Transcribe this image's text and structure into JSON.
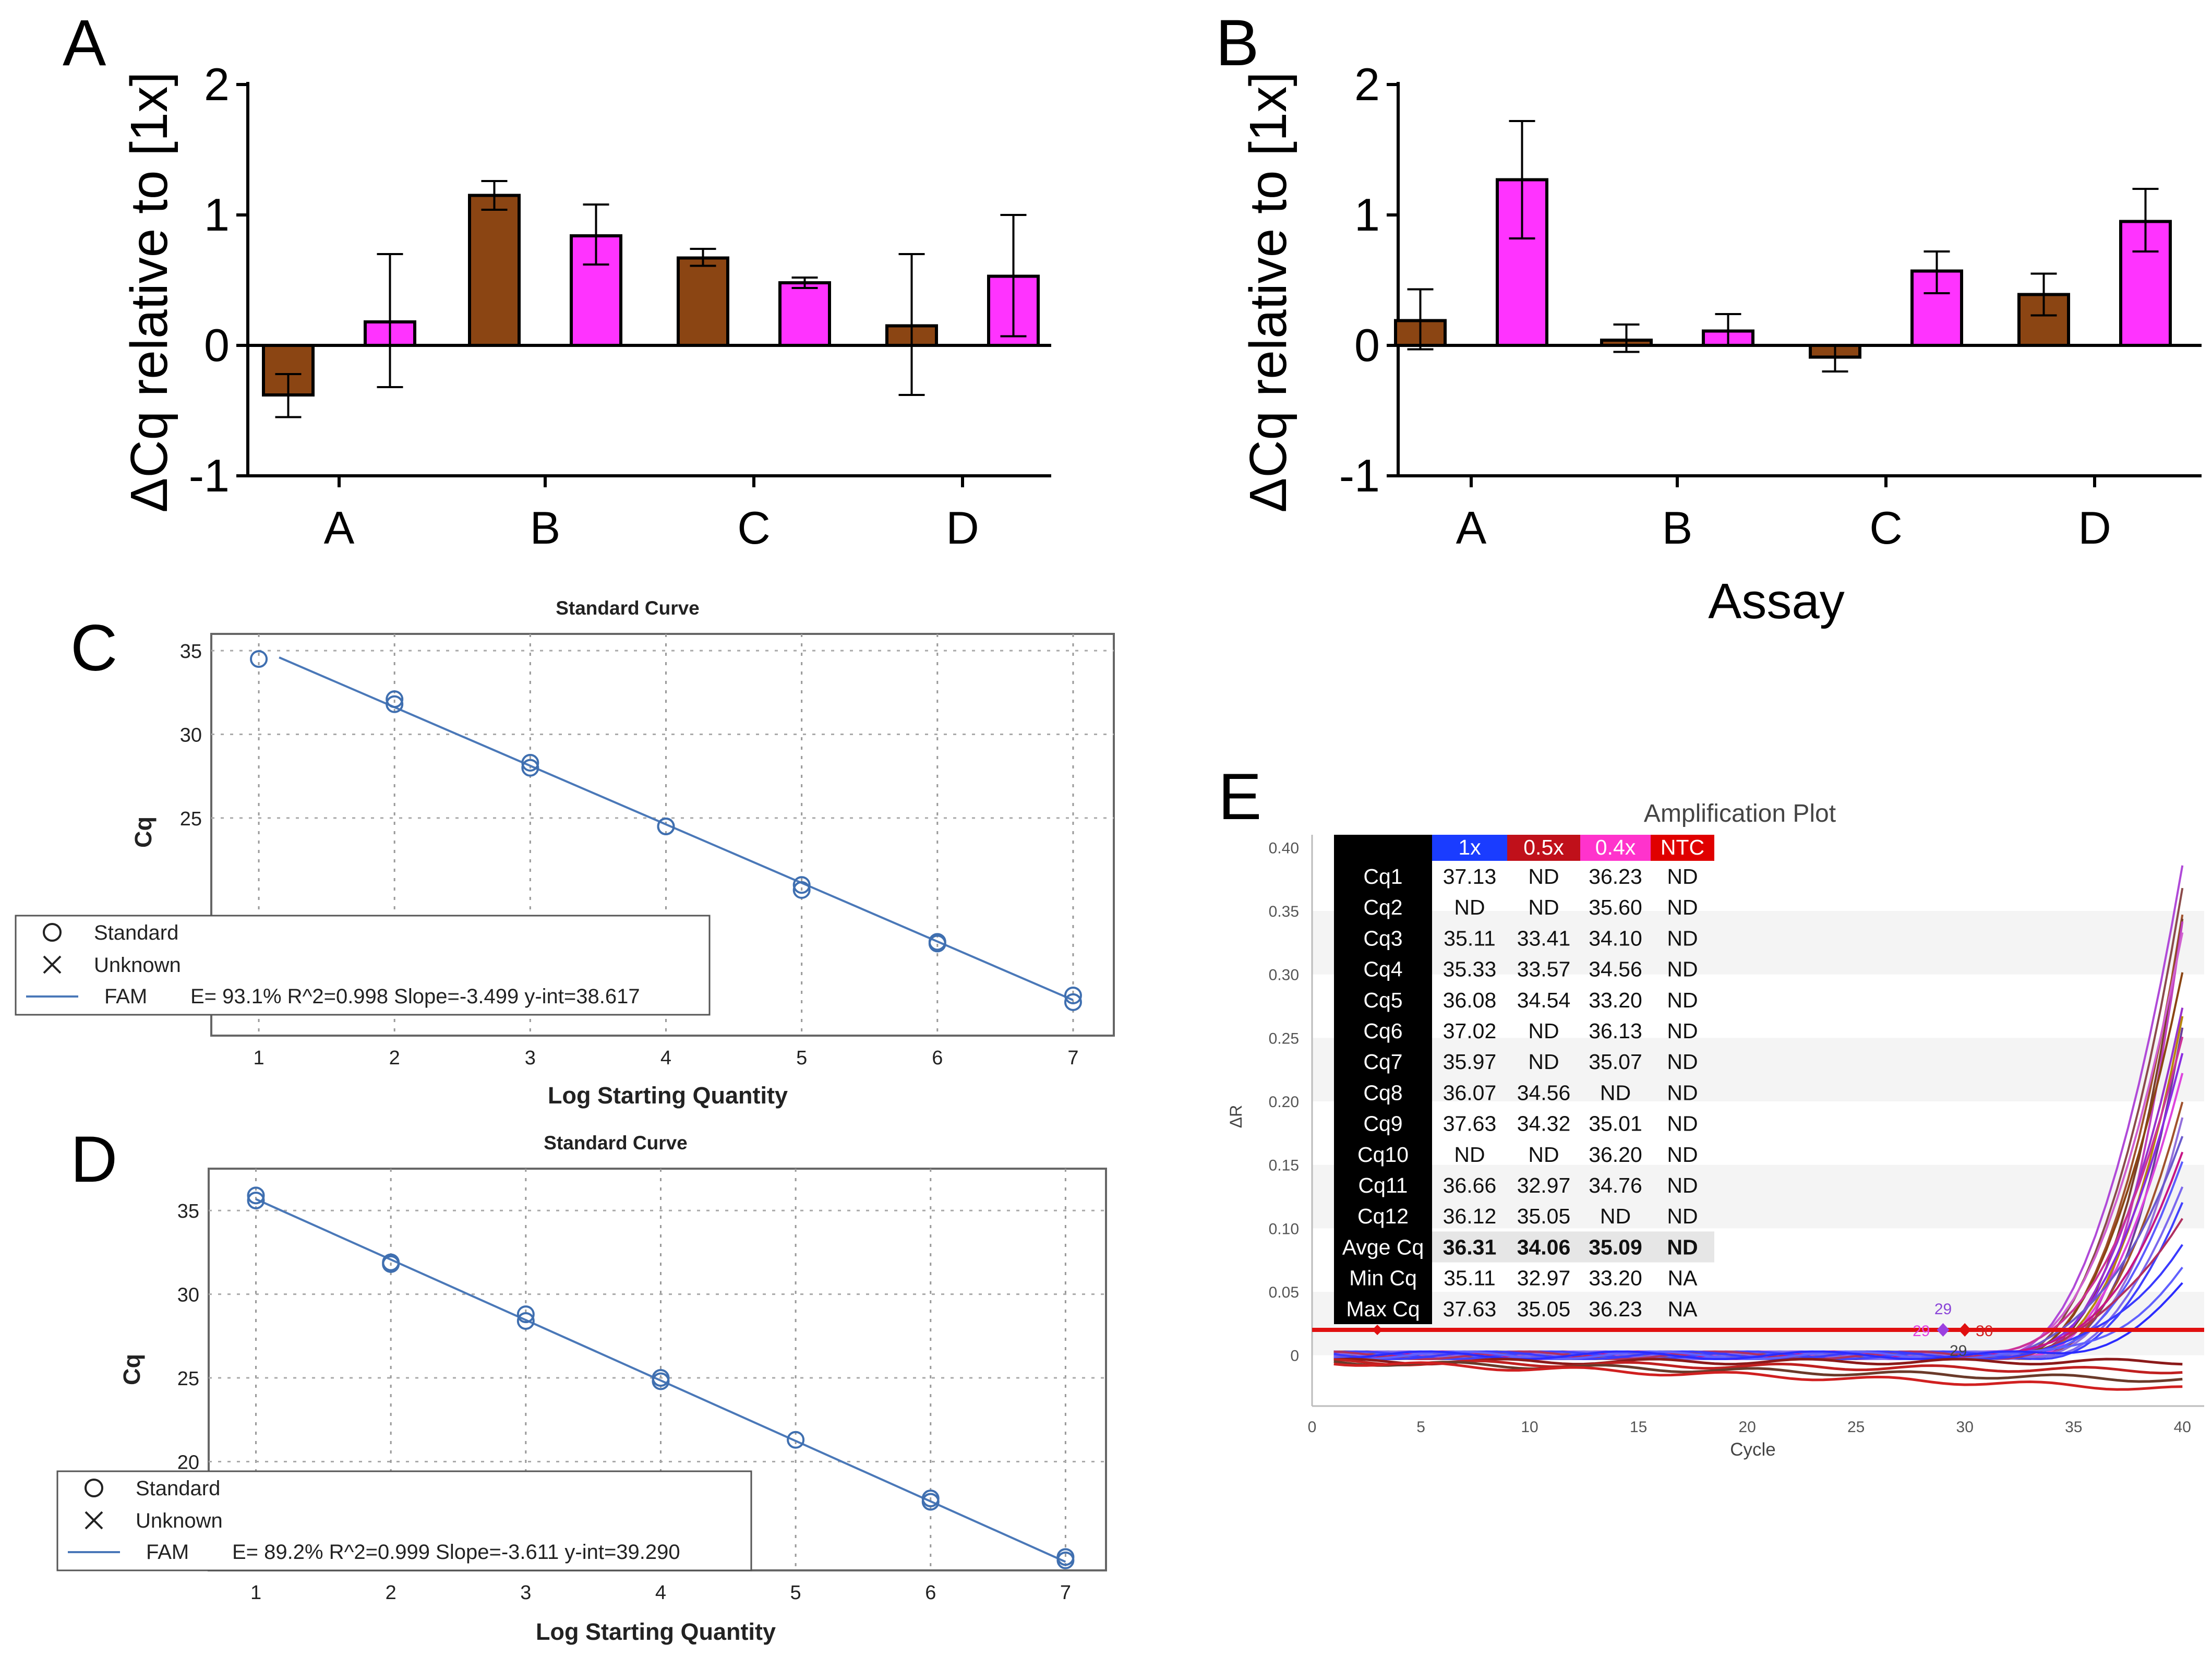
{
  "chart_data": [
    {
      "panel": "A",
      "type": "bar",
      "title": "",
      "xlabel": "",
      "ylabel": "ΔCq relative to [1x]",
      "categories": [
        "A",
        "B",
        "C",
        "D"
      ],
      "ylim": [
        -1,
        2
      ],
      "yticks": [
        -1,
        0,
        1,
        2
      ],
      "series": [
        {
          "name": "brown",
          "color": "#8B4513",
          "values": [
            -0.38,
            1.15,
            0.67,
            0.15
          ],
          "err_low": [
            -0.55,
            1.04,
            0.61,
            -0.38
          ],
          "err_high": [
            -0.22,
            1.26,
            0.74,
            0.7
          ]
        },
        {
          "name": "magenta",
          "color": "#FF33FF",
          "values": [
            0.18,
            0.84,
            0.48,
            0.53
          ],
          "err_low": [
            -0.32,
            0.62,
            0.44,
            0.07
          ],
          "err_high": [
            0.7,
            1.08,
            0.52,
            1.0
          ]
        }
      ]
    },
    {
      "panel": "B",
      "type": "bar",
      "title": "",
      "xlabel": "Assay",
      "ylabel": "ΔCq relative to [1x]",
      "categories": [
        "A",
        "B",
        "C",
        "D"
      ],
      "ylim": [
        -1,
        2
      ],
      "yticks": [
        -1,
        0,
        1,
        2
      ],
      "series": [
        {
          "name": "brown",
          "color": "#8B4513",
          "values": [
            0.19,
            0.04,
            -0.09,
            0.39
          ],
          "err_low": [
            -0.03,
            -0.05,
            -0.2,
            0.23
          ],
          "err_high": [
            0.43,
            0.16,
            0.0,
            0.55
          ]
        },
        {
          "name": "magenta",
          "color": "#FF33FF",
          "values": [
            1.27,
            0.11,
            0.57,
            0.95
          ],
          "err_low": [
            0.82,
            0.0,
            0.4,
            0.72
          ],
          "err_high": [
            1.72,
            0.24,
            0.72,
            1.2
          ]
        }
      ]
    },
    {
      "panel": "C",
      "type": "scatter",
      "title": "Standard Curve",
      "xlabel": "Log Starting Quantity",
      "ylabel": "Cq",
      "xlim": [
        0.65,
        7.3
      ],
      "ylim": [
        12,
        36
      ],
      "xticks": [
        1,
        2,
        3,
        4,
        5,
        6,
        7
      ],
      "yticks": [
        25,
        30,
        35
      ],
      "points": [
        [
          1,
          34.5
        ],
        [
          2,
          31.8
        ],
        [
          2,
          32.1
        ],
        [
          3,
          28.0
        ],
        [
          3,
          28.3
        ],
        [
          4,
          24.5
        ],
        [
          4,
          24.5
        ],
        [
          5,
          20.7
        ],
        [
          5,
          21.0
        ],
        [
          6,
          17.5
        ],
        [
          6,
          17.6
        ],
        [
          7,
          14.0
        ],
        [
          7,
          14.4
        ]
      ],
      "fit": {
        "slope": -3.499,
        "intercept": 38.617,
        "x_range": [
          1.15,
          7.0
        ]
      },
      "legend": {
        "standard": "Standard",
        "unknown": "Unknown",
        "fam": "FAM",
        "stats": "E= 93.1% R^2=0.998 Slope=-3.499 y-int=38.617"
      }
    },
    {
      "panel": "D",
      "type": "scatter",
      "title": "Standard Curve",
      "xlabel": "Log Starting Quantity",
      "ylabel": "Cq",
      "xlim": [
        0.65,
        7.3
      ],
      "ylim": [
        13.5,
        37.5
      ],
      "xticks": [
        1,
        2,
        3,
        4,
        5,
        6,
        7
      ],
      "yticks": [
        20,
        25,
        30,
        35
      ],
      "points": [
        [
          1,
          35.6
        ],
        [
          1,
          35.9
        ],
        [
          2,
          31.8
        ],
        [
          2,
          31.9
        ],
        [
          3,
          28.4
        ],
        [
          3,
          28.8
        ],
        [
          4,
          24.8
        ],
        [
          4,
          25.0
        ],
        [
          5,
          21.3
        ],
        [
          6,
          17.6
        ],
        [
          6,
          17.8
        ],
        [
          7,
          14.1
        ],
        [
          7,
          14.3
        ]
      ],
      "fit": {
        "slope": -3.611,
        "intercept": 39.29,
        "x_range": [
          1.0,
          7.0
        ]
      },
      "legend": {
        "standard": "Standard",
        "unknown": "Unknown",
        "fam": "FAM",
        "stats": "E= 89.2% R^2=0.999 Slope=-3.611 y-int=39.290"
      }
    },
    {
      "panel": "E",
      "type": "line",
      "title": "Amplification Plot",
      "xlabel": "Cycle",
      "ylabel": "ΔR",
      "xlim": [
        0,
        41
      ],
      "ylim": [
        -0.04,
        0.41
      ],
      "xticks": [
        0,
        5,
        10,
        15,
        20,
        25,
        30,
        35,
        40
      ],
      "yticks": [
        0,
        0.05,
        0.1,
        0.15,
        0.2,
        0.25,
        0.3,
        0.35,
        0.4
      ],
      "threshold": 0.02,
      "markers": [
        "29",
        "29",
        "30",
        "29"
      ],
      "table": {
        "headers": [
          "1x",
          "0.5x",
          "0.4x",
          "NTC"
        ],
        "header_colors": [
          "#1a3cff",
          "#c0101a",
          "#ff33cc",
          "#e00000"
        ],
        "rows": [
          [
            "Cq1",
            "37.13",
            "ND",
            "36.23",
            "ND"
          ],
          [
            "Cq2",
            "ND",
            "ND",
            "35.60",
            "ND"
          ],
          [
            "Cq3",
            "35.11",
            "33.41",
            "34.10",
            "ND"
          ],
          [
            "Cq4",
            "35.33",
            "33.57",
            "34.56",
            "ND"
          ],
          [
            "Cq5",
            "36.08",
            "34.54",
            "33.20",
            "ND"
          ],
          [
            "Cq6",
            "37.02",
            "ND",
            "36.13",
            "ND"
          ],
          [
            "Cq7",
            "35.97",
            "ND",
            "35.07",
            "ND"
          ],
          [
            "Cq8",
            "36.07",
            "34.56",
            "ND",
            "ND"
          ],
          [
            "Cq9",
            "37.63",
            "34.32",
            "35.01",
            "ND"
          ],
          [
            "Cq10",
            "ND",
            "ND",
            "36.20",
            "ND"
          ],
          [
            "Cq11",
            "36.66",
            "32.97",
            "34.76",
            "ND"
          ],
          [
            "Cq12",
            "36.12",
            "35.05",
            "ND",
            "ND"
          ],
          [
            "Avge Cq",
            "36.31",
            "34.06",
            "35.09",
            "ND"
          ],
          [
            "Min Cq",
            "35.11",
            "32.97",
            "33.20",
            "NA"
          ],
          [
            "Max Cq",
            "37.63",
            "35.05",
            "36.23",
            "NA"
          ]
        ]
      },
      "curve_max": [
        0.385,
        0.37,
        0.35,
        0.345,
        0.34,
        0.33,
        0.3,
        0.275,
        0.27,
        0.26,
        0.25,
        0.235,
        0.22,
        0.2,
        0.19,
        0.175,
        0.16,
        0.15,
        0.13,
        0.12,
        0.11,
        0.09,
        0.07,
        0.055
      ],
      "curve_colors": [
        "#b04ad8",
        "#8b4b4b",
        "#a0522d",
        "#7a3f2b",
        "#c040c0",
        "#d060d0",
        "#8b4513",
        "#9932cc",
        "#b8860b",
        "#6a3d9a",
        "#cc3399",
        "#8a2be2",
        "#dd44dd",
        "#a0522d",
        "#9370db",
        "#6a5acd",
        "#c71585",
        "#5b5bff",
        "#7b68ee",
        "#4040ff",
        "#b03060",
        "#3a3aff",
        "#6060ff",
        "#2b2bff"
      ]
    }
  ],
  "panel_labels": {
    "a": "A",
    "b": "B",
    "c": "C",
    "d": "D",
    "e": "E"
  }
}
